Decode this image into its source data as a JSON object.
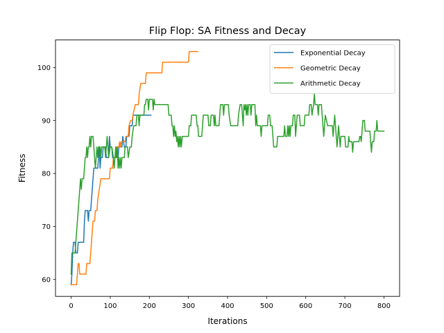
{
  "chart_data": {
    "type": "line",
    "title": "Flip Flop: SA Fitness and Decay",
    "xlabel": "Iterations",
    "ylabel": "Fitness",
    "xlim": [
      -40,
      840
    ],
    "ylim": [
      56.8,
      105.2
    ],
    "xticks": [
      0,
      100,
      200,
      300,
      400,
      500,
      600,
      700,
      800
    ],
    "yticks": [
      60,
      70,
      80,
      90,
      100
    ],
    "grid": false,
    "legend_position": "top-right",
    "series": [
      {
        "name": "Exponential Decay",
        "color": "#1f77b4",
        "points": [
          [
            0,
            59
          ],
          [
            2,
            61
          ],
          [
            4,
            65
          ],
          [
            6,
            67
          ],
          [
            10,
            67
          ],
          [
            12,
            65
          ],
          [
            16,
            65
          ],
          [
            18,
            67
          ],
          [
            20,
            67
          ],
          [
            22,
            67
          ],
          [
            30,
            67
          ],
          [
            32,
            67
          ],
          [
            34,
            71
          ],
          [
            36,
            73
          ],
          [
            42,
            73
          ],
          [
            44,
            71
          ],
          [
            46,
            73
          ],
          [
            50,
            73
          ],
          [
            52,
            75
          ],
          [
            54,
            77
          ],
          [
            56,
            79
          ],
          [
            58,
            81
          ],
          [
            68,
            81
          ],
          [
            70,
            83
          ],
          [
            72,
            85
          ],
          [
            74,
            81
          ],
          [
            76,
            83
          ],
          [
            80,
            83
          ],
          [
            82,
            85
          ],
          [
            88,
            85
          ],
          [
            90,
            83
          ],
          [
            96,
            83
          ],
          [
            98,
            87
          ],
          [
            100,
            85
          ],
          [
            104,
            85
          ],
          [
            106,
            83
          ],
          [
            120,
            83
          ],
          [
            122,
            85
          ],
          [
            130,
            85
          ],
          [
            132,
            87
          ],
          [
            136,
            85
          ],
          [
            140,
            85
          ],
          [
            142,
            87
          ],
          [
            148,
            87
          ],
          [
            150,
            89
          ],
          [
            156,
            89
          ],
          [
            158,
            91
          ],
          [
            170,
            91
          ],
          [
            180,
            91
          ],
          [
            184,
            91
          ],
          [
            190,
            91
          ],
          [
            200,
            91
          ],
          [
            204,
            91
          ]
        ]
      },
      {
        "name": "Geometric Decay",
        "color": "#ff7f0e",
        "points": [
          [
            0,
            59
          ],
          [
            14,
            59
          ],
          [
            16,
            61
          ],
          [
            18,
            63
          ],
          [
            20,
            63
          ],
          [
            22,
            61
          ],
          [
            38,
            61
          ],
          [
            40,
            63
          ],
          [
            48,
            63
          ],
          [
            50,
            65
          ],
          [
            54,
            69
          ],
          [
            56,
            71
          ],
          [
            60,
            71
          ],
          [
            62,
            73
          ],
          [
            66,
            73
          ],
          [
            68,
            75
          ],
          [
            72,
            77
          ],
          [
            76,
            79
          ],
          [
            98,
            79
          ],
          [
            100,
            81
          ],
          [
            106,
            81
          ],
          [
            108,
            83
          ],
          [
            114,
            83
          ],
          [
            116,
            85
          ],
          [
            122,
            85
          ],
          [
            124,
            86
          ],
          [
            126,
            85
          ],
          [
            128,
            86
          ],
          [
            138,
            86
          ],
          [
            140,
            87
          ],
          [
            146,
            87
          ],
          [
            148,
            89
          ],
          [
            152,
            90
          ],
          [
            156,
            90
          ],
          [
            158,
            91
          ],
          [
            164,
            93
          ],
          [
            172,
            93
          ],
          [
            174,
            95
          ],
          [
            178,
            97
          ],
          [
            190,
            97
          ],
          [
            192,
            99
          ],
          [
            232,
            99
          ],
          [
            234,
            101
          ],
          [
            300,
            101
          ],
          [
            302,
            103
          ],
          [
            324,
            103
          ]
        ]
      },
      {
        "name": "Arithmetic Decay",
        "color": "#2ca02c",
        "points": [
          [
            0,
            61
          ],
          [
            2,
            65
          ],
          [
            6,
            65
          ],
          [
            10,
            65
          ],
          [
            12,
            67
          ],
          [
            16,
            71
          ],
          [
            18,
            73
          ],
          [
            20,
            75
          ],
          [
            22,
            77
          ],
          [
            24,
            79
          ],
          [
            26,
            77
          ],
          [
            28,
            79
          ],
          [
            32,
            79
          ],
          [
            34,
            81
          ],
          [
            36,
            83
          ],
          [
            38,
            83
          ],
          [
            40,
            85
          ],
          [
            42,
            83
          ],
          [
            44,
            85
          ],
          [
            46,
            85
          ],
          [
            48,
            87
          ],
          [
            50,
            85
          ],
          [
            52,
            87
          ],
          [
            56,
            87
          ],
          [
            58,
            85
          ],
          [
            60,
            83
          ],
          [
            62,
            81
          ],
          [
            64,
            83
          ],
          [
            66,
            85
          ],
          [
            68,
            83
          ],
          [
            70,
            85
          ],
          [
            74,
            85
          ],
          [
            76,
            83
          ],
          [
            78,
            85
          ],
          [
            86,
            85
          ],
          [
            88,
            83
          ],
          [
            90,
            85
          ],
          [
            92,
            87
          ],
          [
            94,
            85
          ],
          [
            96,
            83
          ],
          [
            100,
            85
          ],
          [
            104,
            85
          ],
          [
            108,
            83
          ],
          [
            110,
            81
          ],
          [
            112,
            83
          ],
          [
            114,
            85
          ],
          [
            116,
            83
          ],
          [
            118,
            85
          ],
          [
            120,
            81
          ],
          [
            122,
            83
          ],
          [
            124,
            81
          ],
          [
            126,
            83
          ],
          [
            128,
            81
          ],
          [
            130,
            83
          ],
          [
            136,
            83
          ],
          [
            138,
            85
          ],
          [
            144,
            85
          ],
          [
            146,
            83
          ],
          [
            150,
            85
          ],
          [
            154,
            85
          ],
          [
            156,
            87
          ],
          [
            160,
            89
          ],
          [
            166,
            89
          ],
          [
            168,
            91
          ],
          [
            172,
            91
          ],
          [
            174,
            89
          ],
          [
            176,
            91
          ],
          [
            186,
            91
          ],
          [
            188,
            93
          ],
          [
            190,
            93
          ],
          [
            192,
            94
          ],
          [
            196,
            94
          ],
          [
            198,
            92
          ],
          [
            200,
            94
          ],
          [
            208,
            94
          ],
          [
            210,
            92
          ],
          [
            212,
            94
          ],
          [
            214,
            93
          ],
          [
            220,
            93
          ],
          [
            222,
            93
          ],
          [
            248,
            93
          ],
          [
            250,
            91
          ],
          [
            256,
            91
          ],
          [
            258,
            89
          ],
          [
            260,
            89
          ],
          [
            262,
            87
          ],
          [
            264,
            89
          ],
          [
            266,
            87
          ],
          [
            268,
            88
          ],
          [
            270,
            86
          ],
          [
            272,
            87
          ],
          [
            274,
            85
          ],
          [
            276,
            87
          ],
          [
            278,
            85
          ],
          [
            280,
            87
          ],
          [
            282,
            85
          ],
          [
            284,
            87
          ],
          [
            300,
            87
          ],
          [
            302,
            89
          ],
          [
            306,
            89
          ],
          [
            308,
            91
          ],
          [
            312,
            91
          ],
          [
            320,
            91
          ],
          [
            322,
            89
          ],
          [
            324,
            89
          ],
          [
            326,
            87
          ],
          [
            334,
            87
          ],
          [
            336,
            89
          ],
          [
            338,
            91
          ],
          [
            350,
            91
          ],
          [
            352,
            89
          ],
          [
            356,
            89
          ],
          [
            358,
            91
          ],
          [
            364,
            91
          ],
          [
            366,
            89
          ],
          [
            368,
            91
          ],
          [
            370,
            89
          ],
          [
            378,
            89
          ],
          [
            380,
            91
          ],
          [
            382,
            93
          ],
          [
            388,
            93
          ],
          [
            390,
            91
          ],
          [
            392,
            93
          ],
          [
            394,
            93
          ],
          [
            402,
            93
          ],
          [
            404,
            91
          ],
          [
            408,
            89
          ],
          [
            426,
            89
          ],
          [
            428,
            91
          ],
          [
            432,
            93
          ],
          [
            436,
            93
          ],
          [
            438,
            91
          ],
          [
            440,
            89
          ],
          [
            442,
            93
          ],
          [
            444,
            92
          ],
          [
            446,
            93
          ],
          [
            448,
            91
          ],
          [
            450,
            93
          ],
          [
            452,
            91
          ],
          [
            454,
            93
          ],
          [
            458,
            93
          ],
          [
            460,
            91
          ],
          [
            462,
            93
          ],
          [
            470,
            93
          ],
          [
            472,
            89
          ],
          [
            474,
            91
          ],
          [
            476,
            89
          ],
          [
            484,
            89
          ],
          [
            486,
            87
          ],
          [
            488,
            89
          ],
          [
            502,
            89
          ],
          [
            504,
            91
          ],
          [
            508,
            91
          ],
          [
            510,
            89
          ],
          [
            514,
            89
          ],
          [
            516,
            87
          ],
          [
            518,
            85
          ],
          [
            526,
            85
          ],
          [
            528,
            87
          ],
          [
            544,
            87
          ],
          [
            546,
            89
          ],
          [
            548,
            87
          ],
          [
            552,
            87
          ],
          [
            554,
            89
          ],
          [
            556,
            87
          ],
          [
            558,
            89
          ],
          [
            560,
            87
          ],
          [
            562,
            89
          ],
          [
            566,
            89
          ],
          [
            568,
            91
          ],
          [
            572,
            91
          ],
          [
            574,
            87
          ],
          [
            576,
            89
          ],
          [
            578,
            91
          ],
          [
            584,
            91
          ],
          [
            586,
            89
          ],
          [
            596,
            89
          ],
          [
            598,
            91
          ],
          [
            608,
            91
          ],
          [
            610,
            93
          ],
          [
            614,
            93
          ],
          [
            616,
            91
          ],
          [
            620,
            93
          ],
          [
            622,
            95
          ],
          [
            624,
            93
          ],
          [
            630,
            93
          ],
          [
            632,
            91
          ],
          [
            634,
            93
          ],
          [
            640,
            93
          ],
          [
            642,
            91
          ],
          [
            644,
            89
          ],
          [
            646,
            87
          ],
          [
            648,
            89
          ],
          [
            650,
            91
          ],
          [
            656,
            89
          ],
          [
            668,
            89
          ],
          [
            670,
            87
          ],
          [
            672,
            89
          ],
          [
            674,
            91
          ],
          [
            676,
            89
          ],
          [
            678,
            87
          ],
          [
            680,
            85
          ],
          [
            682,
            87
          ],
          [
            684,
            89
          ],
          [
            686,
            87
          ],
          [
            688,
            85
          ],
          [
            690,
            87
          ],
          [
            700,
            87
          ],
          [
            702,
            85
          ],
          [
            708,
            85
          ],
          [
            710,
            87
          ],
          [
            712,
            86
          ],
          [
            716,
            86
          ],
          [
            718,
            86
          ],
          [
            720,
            84
          ],
          [
            722,
            86
          ],
          [
            736,
            86
          ],
          [
            738,
            87
          ],
          [
            740,
            87
          ],
          [
            742,
            86
          ],
          [
            744,
            88
          ],
          [
            746,
            90
          ],
          [
            750,
            90
          ],
          [
            752,
            88
          ],
          [
            764,
            88
          ],
          [
            766,
            86
          ],
          [
            768,
            84
          ],
          [
            770,
            86
          ],
          [
            774,
            86
          ],
          [
            776,
            88
          ],
          [
            780,
            88
          ],
          [
            782,
            90
          ],
          [
            784,
            88
          ],
          [
            800,
            88
          ]
        ]
      }
    ]
  }
}
